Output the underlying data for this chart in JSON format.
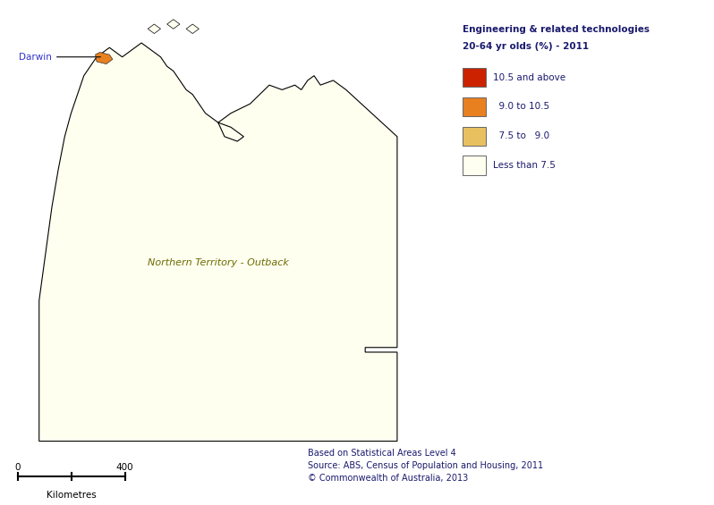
{
  "legend_title_line1": "Engineering & related technologies",
  "legend_title_line2": "20-64 yr olds (%) - 2011",
  "legend_items": [
    {
      "label": "10.5 and above",
      "color": "#CC2200"
    },
    {
      "label": "  9.0 to 10.5",
      "color": "#E88020"
    },
    {
      "label": "  7.5 to   9.0",
      "color": "#E8C060"
    },
    {
      "label": "Less than 7.5",
      "color": "#FFFFF0"
    }
  ],
  "region_label": "Northern Territory - Outback",
  "region_label_color": "#6B6B00",
  "darwin_label": "Darwin",
  "darwin_label_color": "#3333CC",
  "darwin_marker_color": "#E88020",
  "source_line1": "Based on Statistical Areas Level 4",
  "source_line2": "Source: ABS, Census of Population and Housing, 2011",
  "source_line3": "© Commonwealth of Australia, 2013",
  "source_color": "#1a1a6e",
  "scale_label": "Kilometres",
  "scale_0": "0",
  "scale_400": "400",
  "background_color": "#FFFFFF",
  "map_border_color": "#000000",
  "map_fill_light": "#FFFFF0",
  "legend_text_color": "#1a1a6e"
}
